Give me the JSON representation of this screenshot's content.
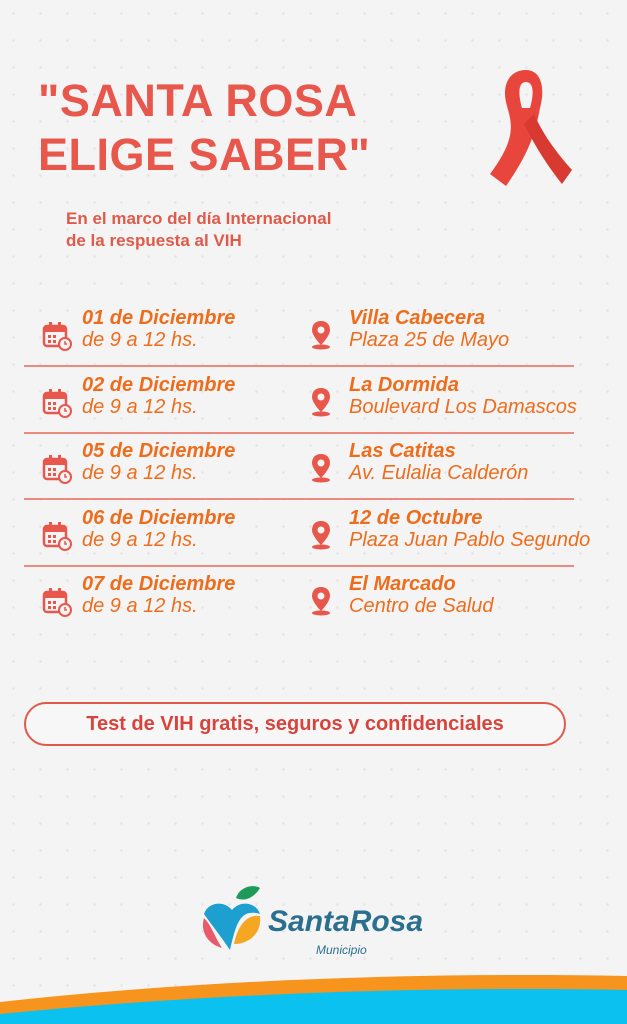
{
  "title": {
    "line1": "\"SANTA ROSA",
    "line2": "ELIGE SABER\""
  },
  "subtitle": {
    "line1": "En el marco del día Internacional",
    "line2": "de la respuesta al VIH"
  },
  "events": [
    {
      "date": "01 de Diciembre",
      "time": "de 9 a 12 hs.",
      "place": "Villa Cabecera",
      "address": "Plaza 25 de Mayo"
    },
    {
      "date": "02 de Diciembre",
      "time": "de 9 a 12 hs.",
      "place": "La Dormida",
      "address": "Boulevard Los Damascos"
    },
    {
      "date": "05 de Diciembre",
      "time": "de 9 a 12 hs.",
      "place": "Las Catitas",
      "address": "Av. Eulalia Calderón"
    },
    {
      "date": "06 de Diciembre",
      "time": "de 9 a 12 hs.",
      "place": "12 de Octubre",
      "address": "Plaza Juan Pablo Segundo"
    },
    {
      "date": "07 de Diciembre",
      "time": "de 9 a 12 hs.",
      "place": "El Marcado",
      "address": "Centro de Salud"
    }
  ],
  "banner": "Test de VIH gratis, seguros y confidenciales",
  "logo": {
    "name": "SantaRosa",
    "sub": "Municipio"
  },
  "colors": {
    "title": "#e8574c",
    "text": "#ee6d1c",
    "ribbon": "#e8463c",
    "wave_orange": "#f7941d",
    "wave_blue": "#0bc1f0"
  },
  "icons": {
    "date": "calendar-clock-icon",
    "place": "map-pin-icon",
    "emblem": "awareness-ribbon-icon"
  }
}
